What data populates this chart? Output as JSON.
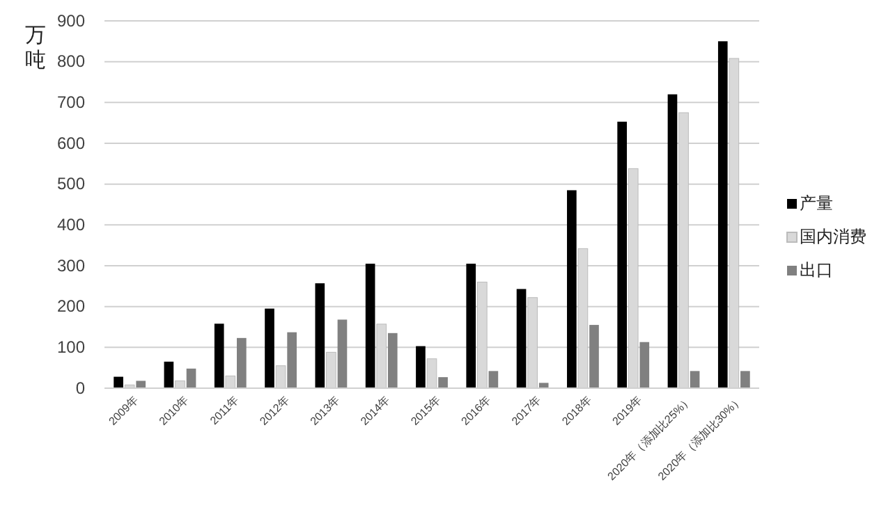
{
  "chart_data": {
    "type": "bar",
    "ylabel": "万吨",
    "categories": [
      "2009年",
      "2010年",
      "2011年",
      "2012年",
      "2013年",
      "2014年",
      "2015年",
      "2016年",
      "2017年",
      "2018年",
      "2019年",
      "2020年（添加比25%）",
      "2020年（添加比30%）"
    ],
    "series": [
      {
        "name": "产量",
        "color": "#000000",
        "values": [
          28,
          65,
          158,
          195,
          257,
          305,
          103,
          305,
          243,
          485,
          653,
          720,
          850
        ]
      },
      {
        "name": "国内消费",
        "color": "#d9d9d9",
        "values": [
          8,
          18,
          30,
          55,
          88,
          157,
          72,
          260,
          222,
          342,
          538,
          675,
          808
        ]
      },
      {
        "name": "出口",
        "color": "#808080",
        "values": [
          18,
          48,
          123,
          137,
          168,
          135,
          27,
          42,
          13,
          155,
          113,
          42,
          42
        ]
      }
    ],
    "ylim": [
      0,
      900
    ],
    "yticks": [
      0,
      100,
      200,
      300,
      400,
      500,
      600,
      700,
      800,
      900
    ],
    "grid": "y",
    "legend": "right"
  }
}
